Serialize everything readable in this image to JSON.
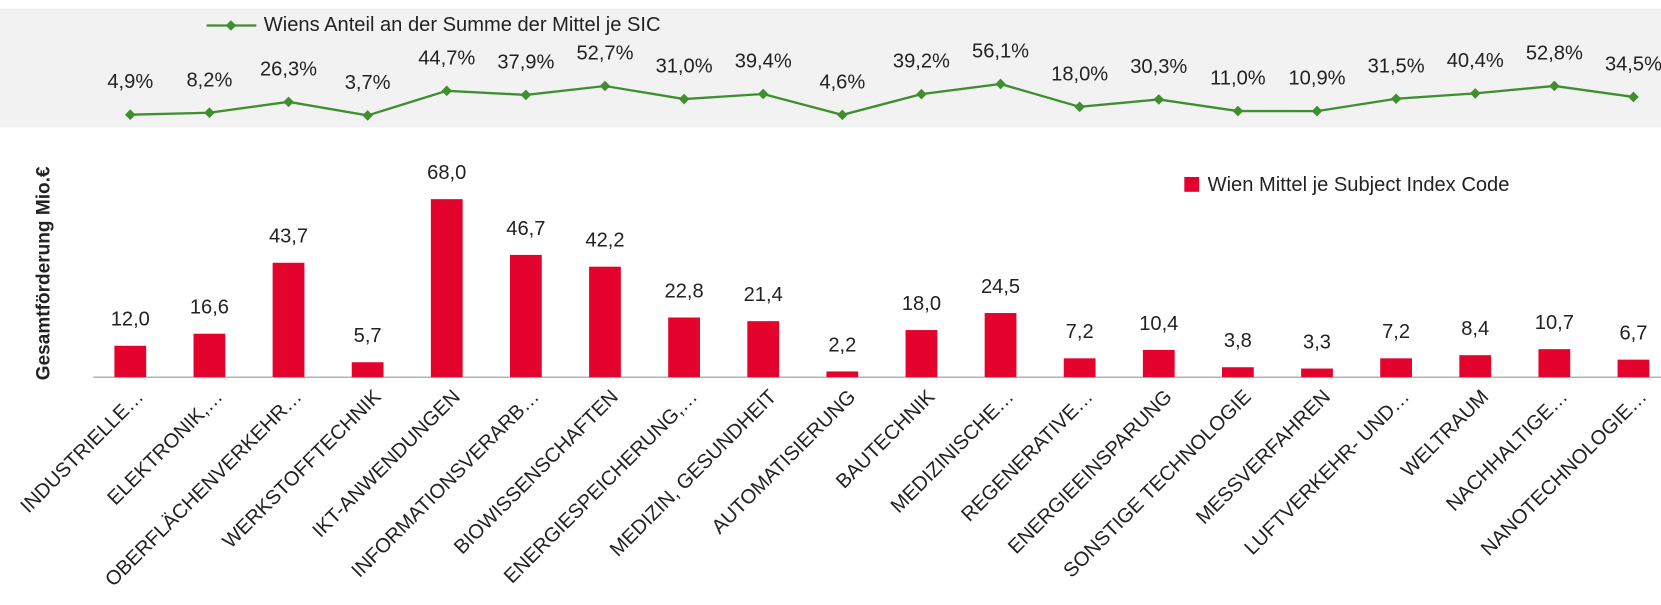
{
  "chart_data": {
    "type": "bar",
    "ylabel": "Gesamtförderung Mio.€",
    "categories": [
      "INDUSTRIELLE…",
      "ELEKTRONIK,…",
      "OBERFLÄCHENVERKEHR…",
      "WERKSTOFFTECHNIK",
      "IKT-ANWENDUNGEN",
      "INFORMATIONSVERARB…",
      "BIOWISSENSCHAFTEN",
      "ENERGIESPEICHERUNG,…",
      "MEDIZIN, GESUNDHEIT",
      "AUTOMATISIERUNG",
      "BAUTECHNIK",
      "MEDIZINISCHE…",
      "REGENERATIVE…",
      "ENERGIEEINSPARUNG",
      "SONSTIGE TECHNOLOGIE",
      "MESSVERFAHREN",
      "LUFTVERKEHR- UND…",
      "WELTRAUM",
      "NACHHALTIGE…",
      "NANOTECHNOLOGIE…"
    ],
    "ylim": [
      0,
      70
    ],
    "y2lim": [
      0,
      60
    ],
    "series": [
      {
        "name": "Wien Mittel je Subject Index Code",
        "type": "bar",
        "color": "#e3032d",
        "values": [
          12.0,
          16.6,
          43.7,
          5.7,
          68.0,
          46.7,
          42.2,
          22.8,
          21.4,
          2.2,
          18.0,
          24.5,
          7.2,
          10.4,
          3.8,
          3.3,
          7.2,
          8.4,
          10.7,
          6.7
        ],
        "value_labels": [
          "12,0",
          "16,6",
          "43,7",
          "5,7",
          "68,0",
          "46,7",
          "42,2",
          "22,8",
          "21,4",
          "2,2",
          "18,0",
          "24,5",
          "7,2",
          "10,4",
          "3,8",
          "3,3",
          "7,2",
          "8,4",
          "10,7",
          "6,7"
        ]
      },
      {
        "name": "Wiens Anteil an der Summe der Mittel je SIC",
        "type": "line",
        "axis": "y2",
        "color": "#3f8f2f",
        "values": [
          4.9,
          8.2,
          26.3,
          3.7,
          44.7,
          37.9,
          52.7,
          31.0,
          39.4,
          4.6,
          39.2,
          56.1,
          18.0,
          30.3,
          11.0,
          10.9,
          31.5,
          40.4,
          52.8,
          34.5
        ],
        "value_labels": [
          "4,9%",
          "8,2%",
          "26,3%",
          "3,7%",
          "44,7%",
          "37,9%",
          "52,7%",
          "31,0%",
          "39,4%",
          "4,6%",
          "39,2%",
          "56,1%",
          "18,0%",
          "30,3%",
          "11,0%",
          "10,9%",
          "31,5%",
          "40,4%",
          "52,8%",
          "34,5%"
        ]
      }
    ]
  }
}
